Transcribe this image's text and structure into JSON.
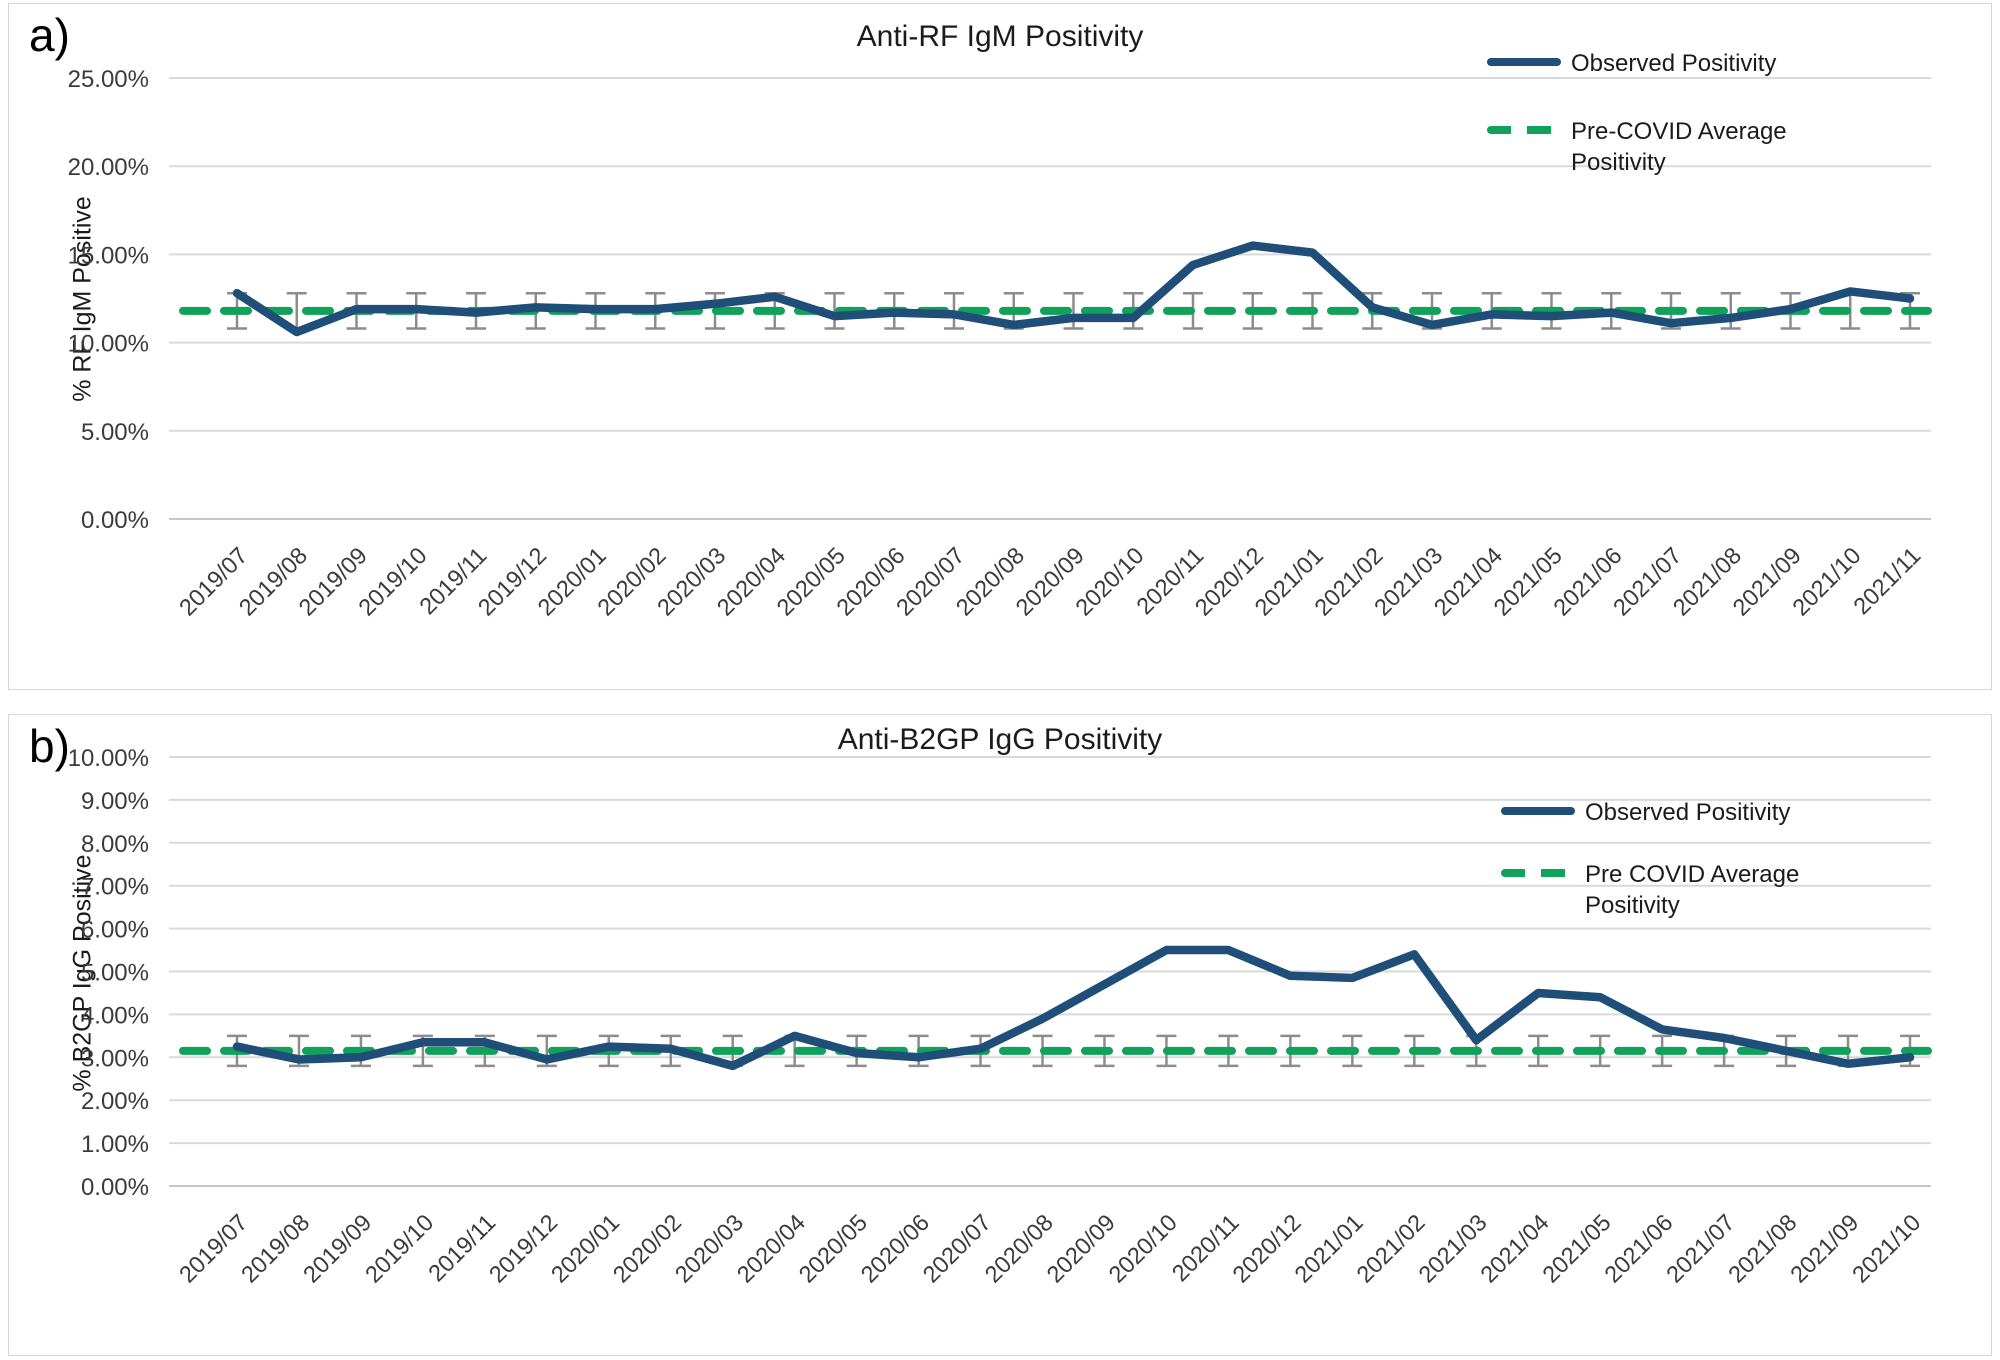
{
  "colors": {
    "observed": "#1F4E79",
    "average": "#10A15A",
    "error_bar": "#8C8C8C",
    "gridline": "#D9D9D9",
    "axis_line": "#C6C6C6",
    "tick_text": "#3B3B3B"
  },
  "chart_data": [
    {
      "type": "line",
      "panel_label": "a)",
      "title": "Anti-RF IgM Positivity",
      "ylabel": "% RF IgM Positive",
      "xlabel": "",
      "ylim": [
        0,
        25
      ],
      "ytick_step": 5,
      "ytick_labels": [
        "25.00%",
        "20.00%",
        "15.00%",
        "10.00%",
        "5.00%",
        "0.00%"
      ],
      "grid": true,
      "legend_position": "top-right",
      "categories": [
        "2019/07",
        "2019/08",
        "2019/09",
        "2019/10",
        "2019/11",
        "2019/12",
        "2020/01",
        "2020/02",
        "2020/03",
        "2020/04",
        "2020/05",
        "2020/06",
        "2020/07",
        "2020/08",
        "2020/09",
        "2020/10",
        "2020/11",
        "2020/12",
        "2021/01",
        "2021/02",
        "2021/03",
        "2021/04",
        "2021/05",
        "2021/06",
        "2021/07",
        "2021/08",
        "2021/09",
        "2021/10",
        "2021/11"
      ],
      "series": [
        {
          "name": "Observed Positivity",
          "style": "solid",
          "values": [
            12.8,
            10.6,
            11.9,
            11.9,
            11.7,
            12.0,
            11.9,
            11.9,
            12.2,
            12.6,
            11.5,
            11.7,
            11.6,
            11.0,
            11.4,
            11.4,
            14.4,
            15.5,
            15.1,
            12.0,
            11.0,
            11.6,
            11.5,
            11.7,
            11.1,
            11.4,
            11.9,
            12.9,
            12.5
          ]
        },
        {
          "name": "Pre-COVID Average Positivity",
          "style": "dashed-constant",
          "value": 11.8,
          "error_bar": 1.0
        }
      ]
    },
    {
      "type": "line",
      "panel_label": "b)",
      "title": "Anti-B2GP IgG Positivity",
      "ylabel": "% B2GP IgG Positive",
      "xlabel": "",
      "ylim": [
        0,
        10
      ],
      "ytick_step": 1,
      "ytick_labels": [
        "10.00%",
        "9.00%",
        "8.00%",
        "7.00%",
        "6.00%",
        "5.00%",
        "4.00%",
        "3.00%",
        "2.00%",
        "1.00%",
        "0.00%"
      ],
      "grid": true,
      "legend_position": "top-right",
      "categories": [
        "2019/07",
        "2019/08",
        "2019/09",
        "2019/10",
        "2019/11",
        "2019/12",
        "2020/01",
        "2020/02",
        "2020/03",
        "2020/04",
        "2020/05",
        "2020/06",
        "2020/07",
        "2020/08",
        "2020/09",
        "2020/10",
        "2020/11",
        "2020/12",
        "2021/01",
        "2021/02",
        "2021/03",
        "2021/04",
        "2021/05",
        "2021/06",
        "2021/07",
        "2021/08",
        "2021/09",
        "2021/10"
      ],
      "series": [
        {
          "name": "Observed Positivity",
          "style": "solid",
          "values": [
            3.25,
            2.95,
            3.0,
            3.35,
            3.35,
            2.95,
            3.25,
            3.2,
            2.8,
            3.5,
            3.1,
            3.0,
            3.2,
            3.9,
            4.7,
            5.5,
            5.5,
            4.9,
            4.85,
            5.4,
            3.4,
            4.5,
            4.4,
            3.65,
            3.45,
            3.15,
            2.85,
            3.0
          ]
        },
        {
          "name": "Pre COVID Average Positivity",
          "style": "dashed-constant",
          "value": 3.15,
          "error_bar": 0.35
        }
      ]
    }
  ]
}
